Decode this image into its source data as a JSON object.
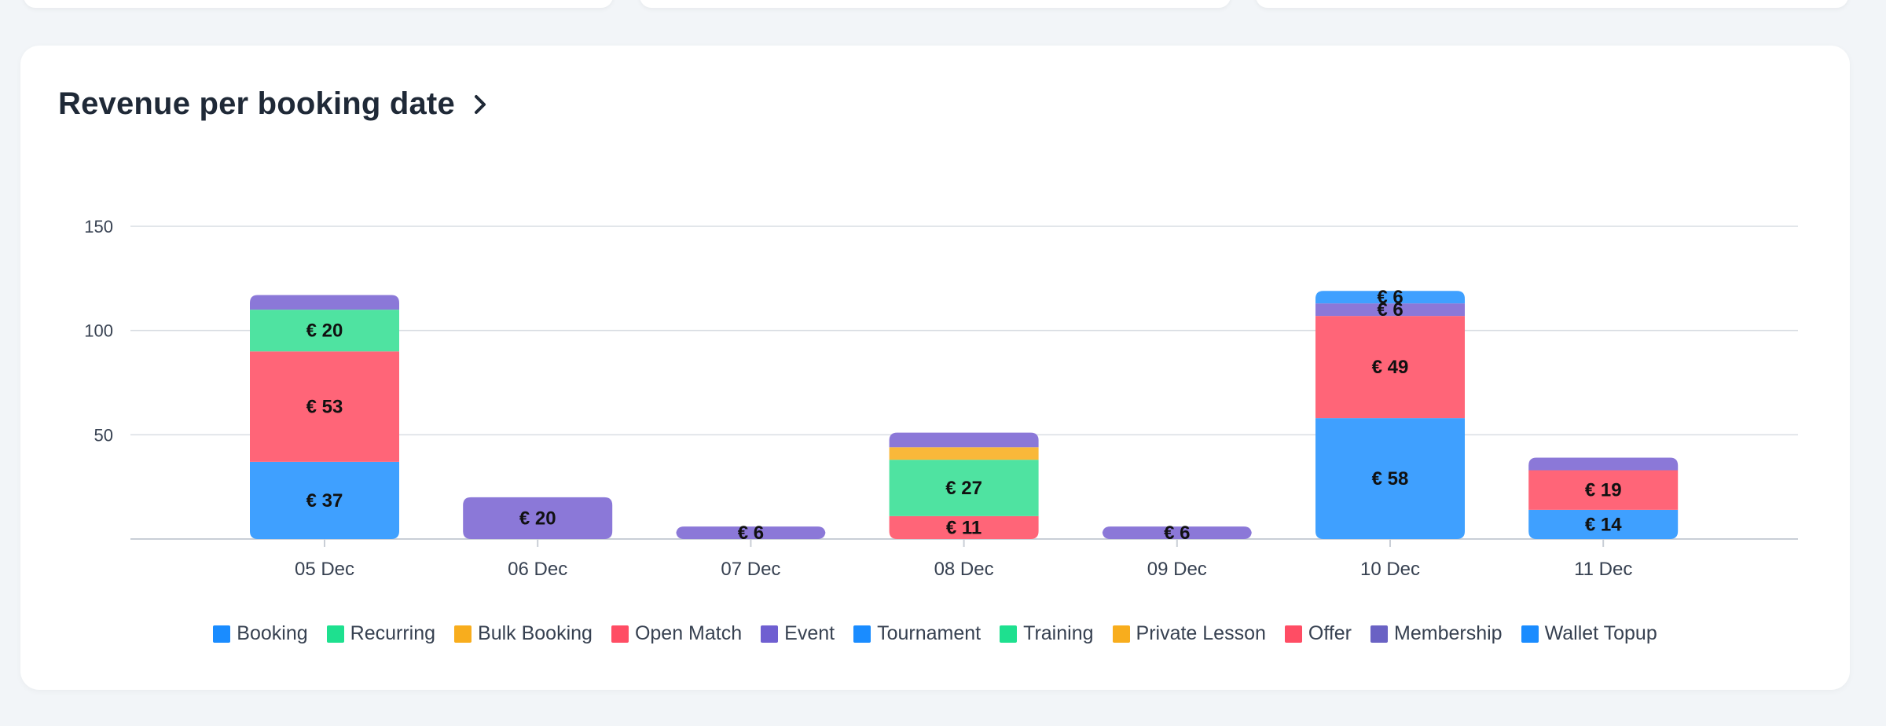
{
  "chart_data": {
    "type": "bar",
    "stacked": true,
    "title": "Revenue per booking date",
    "xlabel": "",
    "ylabel": "",
    "ylim": [
      0,
      150
    ],
    "yticks": [
      50,
      100,
      150
    ],
    "grid": true,
    "legend_position": "bottom",
    "categories": [
      "05 Dec",
      "06 Dec",
      "07 Dec",
      "08 Dec",
      "09 Dec",
      "10 Dec",
      "11 Dec"
    ],
    "series": [
      {
        "name": "Booking",
        "color": "#3fa0ff",
        "values": [
          37,
          0,
          0,
          0,
          0,
          58,
          14
        ],
        "labels": [
          "€ 37",
          "",
          "",
          "",
          "",
          "€ 58",
          "€ 14"
        ]
      },
      {
        "name": "Recurring",
        "color": "#4fe3a1",
        "values": [
          0,
          0,
          0,
          0,
          0,
          0,
          0
        ],
        "labels": [
          "",
          "",
          "",
          "",
          "",
          "",
          ""
        ]
      },
      {
        "name": "Bulk Booking",
        "color": "#f9b83a",
        "values": [
          0,
          0,
          0,
          0,
          0,
          0,
          0
        ],
        "labels": [
          "",
          "",
          "",
          "",
          "",
          "",
          ""
        ]
      },
      {
        "name": "Open Match",
        "color": "#ff6578",
        "values": [
          53,
          0,
          0,
          11,
          0,
          49,
          19
        ],
        "labels": [
          "€ 53",
          "",
          "",
          "€ 11",
          "",
          "€ 49",
          "€ 19"
        ]
      },
      {
        "name": "Event",
        "color": "#8b78d8",
        "values": [
          0,
          0,
          0,
          0,
          0,
          0,
          0
        ],
        "labels": [
          "",
          "",
          "",
          "",
          "",
          "",
          ""
        ]
      },
      {
        "name": "Tournament",
        "color": "#3fa0ff",
        "values": [
          0,
          0,
          0,
          0,
          0,
          0,
          0
        ],
        "labels": [
          "",
          "",
          "",
          "",
          "",
          "",
          ""
        ]
      },
      {
        "name": "Training",
        "color": "#4fe3a1",
        "values": [
          20,
          0,
          0,
          27,
          0,
          0,
          0
        ],
        "labels": [
          "€ 20",
          "",
          "",
          "€ 27",
          "",
          "",
          ""
        ]
      },
      {
        "name": "Private Lesson",
        "color": "#f9b83a",
        "values": [
          0,
          0,
          0,
          6,
          0,
          0,
          0
        ],
        "labels": [
          "",
          "",
          "",
          "",
          "",
          "",
          ""
        ]
      },
      {
        "name": "Offer",
        "color": "#ff6578",
        "values": [
          0,
          0,
          0,
          0,
          0,
          0,
          0
        ],
        "labels": [
          "",
          "",
          "",
          "",
          "",
          "",
          ""
        ]
      },
      {
        "name": "Membership",
        "color": "#8b78d8",
        "values": [
          7,
          20,
          6,
          7,
          6,
          6,
          6
        ],
        "labels": [
          "",
          "€ 20",
          "€ 6",
          "",
          "€ 6",
          "€ 6",
          ""
        ]
      },
      {
        "name": "Wallet Topup",
        "color": "#3fa0ff",
        "values": [
          0,
          0,
          0,
          0,
          0,
          6,
          0
        ],
        "labels": [
          "",
          "",
          "",
          "",
          "",
          "€ 6",
          ""
        ]
      }
    ]
  },
  "legend": [
    {
      "label": "Booking",
      "color": "#1a8cff"
    },
    {
      "label": "Recurring",
      "color": "#1ee08f"
    },
    {
      "label": "Bulk Booking",
      "color": "#f8ad1d"
    },
    {
      "label": "Open Match",
      "color": "#ff4d64"
    },
    {
      "label": "Event",
      "color": "#6f5fd1"
    },
    {
      "label": "Tournament",
      "color": "#1a8cff"
    },
    {
      "label": "Training",
      "color": "#1ee08f"
    },
    {
      "label": "Private Lesson",
      "color": "#f8ad1d"
    },
    {
      "label": "Offer",
      "color": "#ff4d64"
    },
    {
      "label": "Membership",
      "color": "#6a62c4"
    },
    {
      "label": "Wallet Topup",
      "color": "#1a8cff"
    }
  ],
  "icons": {
    "title_action": "chevron-right-icon"
  }
}
